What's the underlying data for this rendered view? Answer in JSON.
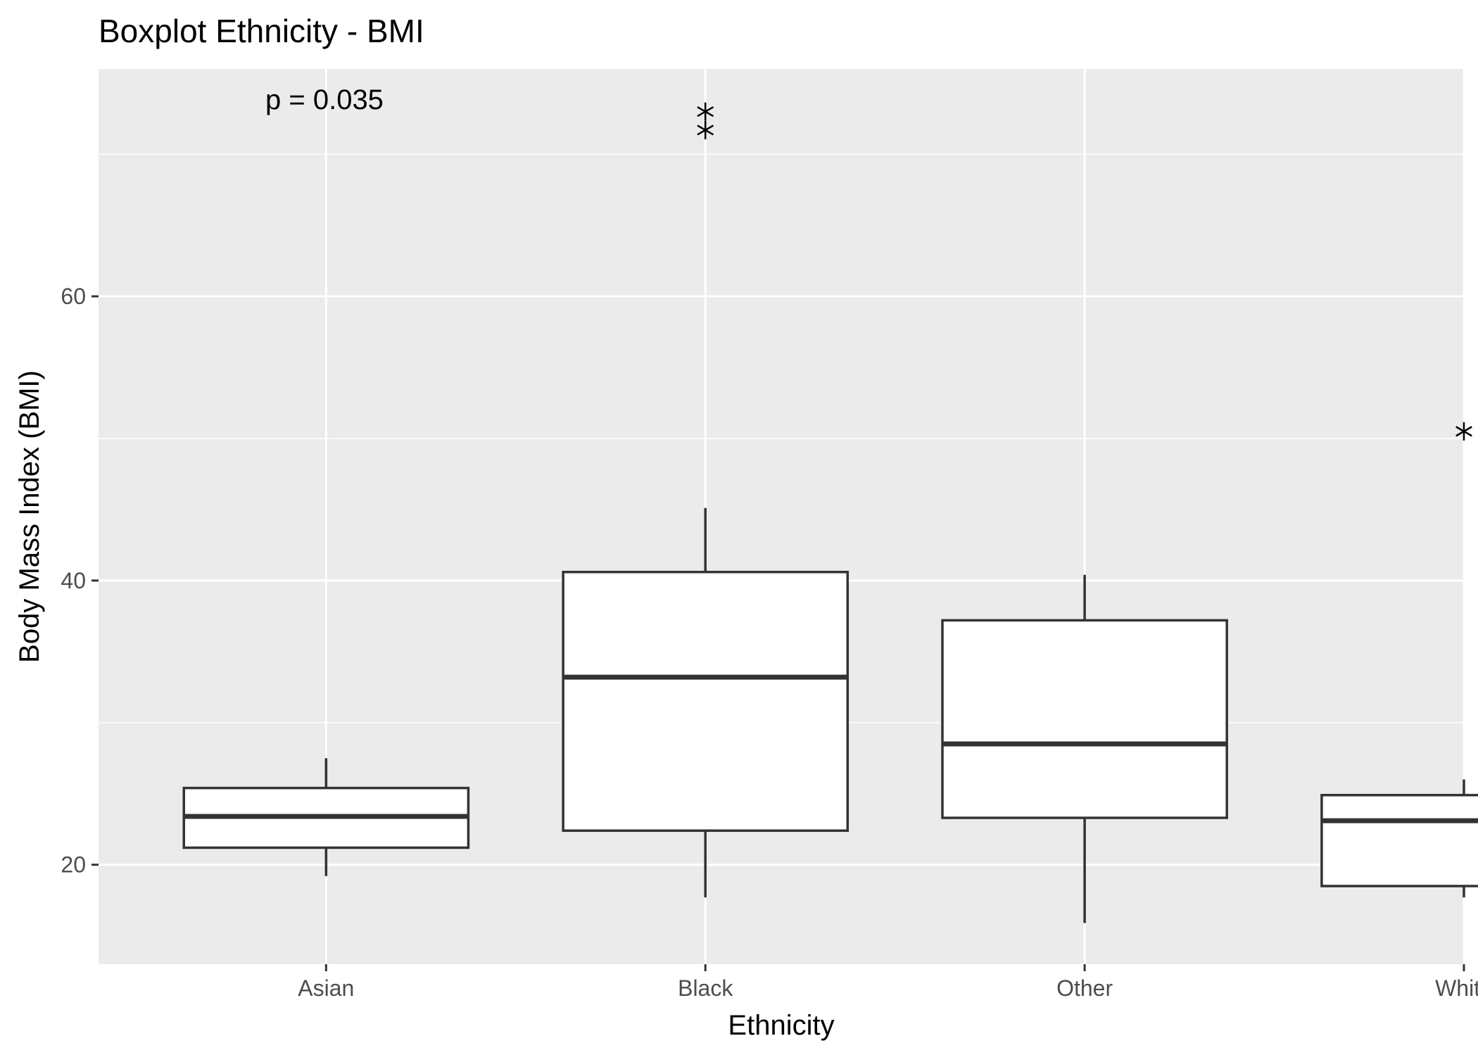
{
  "chart_data": {
    "type": "boxplot",
    "title": "Boxplot Ethnicity - BMI",
    "xlabel": "Ethnicity",
    "ylabel": "Body Mass Index (BMI)",
    "annotation": "p = 0.035",
    "categories": [
      "Asian",
      "Black",
      "Other",
      "White"
    ],
    "ylim": [
      13,
      76
    ],
    "yticks": [
      20,
      40,
      60
    ],
    "grid": true,
    "boxes": [
      {
        "category": "Asian",
        "whisker_low": 19.2,
        "q1": 21.2,
        "median": 23.4,
        "q3": 25.4,
        "whisker_high": 27.5,
        "outliers": []
      },
      {
        "category": "Black",
        "whisker_low": 17.7,
        "q1": 22.4,
        "median": 33.2,
        "q3": 40.6,
        "whisker_high": 45.1,
        "outliers": [
          71.7,
          73.0
        ]
      },
      {
        "category": "Other",
        "whisker_low": 15.9,
        "q1": 23.3,
        "median": 28.5,
        "q3": 37.2,
        "whisker_high": 40.4,
        "outliers": []
      },
      {
        "category": "White",
        "whisker_low": 17.7,
        "q1": 18.5,
        "median": 23.1,
        "q3": 24.9,
        "whisker_high": 26.0,
        "outliers": [
          50.5
        ]
      }
    ]
  }
}
